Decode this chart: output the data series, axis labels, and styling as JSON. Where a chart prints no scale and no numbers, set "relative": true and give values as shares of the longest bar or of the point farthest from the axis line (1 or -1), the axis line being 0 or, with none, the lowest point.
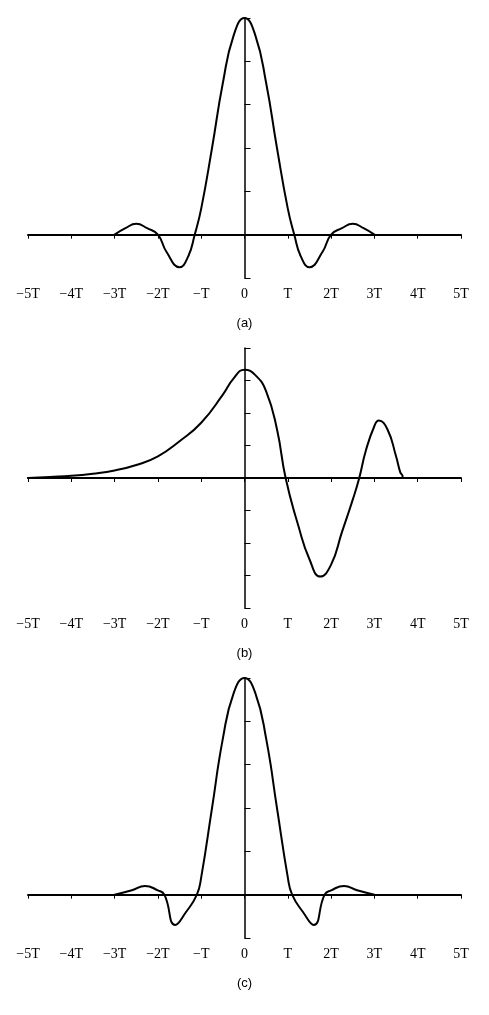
{
  "chart_data": [
    {
      "type": "line",
      "xlabel": "(a)",
      "relative": true,
      "marker": "none",
      "line_style": "solid",
      "xlim": [
        -5,
        5
      ],
      "xticks": [
        {
          "value": -5,
          "label": "−5T"
        },
        {
          "value": -4,
          "label": "−4T"
        },
        {
          "value": -3,
          "label": "−3T"
        },
        {
          "value": -2,
          "label": "−2T"
        },
        {
          "value": -1,
          "label": "−T"
        },
        {
          "value": 0,
          "label": "0"
        },
        {
          "value": 1,
          "label": "T"
        },
        {
          "value": 2,
          "label": "2T"
        },
        {
          "value": 3,
          "label": "3T"
        },
        {
          "value": 4,
          "label": "4T"
        },
        {
          "value": 5,
          "label": "5T"
        }
      ],
      "series": [
        {
          "color": "#000000",
          "x": [
            -3,
            -2.75,
            -2.5,
            -2.25,
            -2,
            -1.8,
            -1.5,
            -1.3,
            -1.15,
            -1,
            -0.75,
            -0.5,
            -0.25,
            0,
            0.25,
            0.5,
            0.75,
            1,
            1.15,
            1.3,
            1.5,
            1.8,
            2,
            2.25,
            2.5,
            2.75,
            3
          ],
          "values": [
            0,
            0.03,
            0.05,
            0.03,
            0,
            -0.08,
            -0.15,
            -0.1,
            0,
            0.12,
            0.4,
            0.7,
            0.92,
            1,
            0.92,
            0.7,
            0.4,
            0.12,
            0,
            -0.1,
            -0.15,
            -0.08,
            0,
            0.03,
            0.05,
            0.03,
            0
          ]
        }
      ]
    },
    {
      "type": "line",
      "xlabel": "(b)",
      "relative": true,
      "marker": "none",
      "line_style": "solid",
      "xlim": [
        -5,
        5
      ],
      "xticks": [
        {
          "value": -5,
          "label": "−5T"
        },
        {
          "value": -4,
          "label": "−4T"
        },
        {
          "value": -3,
          "label": "−3T"
        },
        {
          "value": -2,
          "label": "−2T"
        },
        {
          "value": -1,
          "label": "−T"
        },
        {
          "value": 0,
          "label": "0"
        },
        {
          "value": 1,
          "label": "T"
        },
        {
          "value": 2,
          "label": "2T"
        },
        {
          "value": 3,
          "label": "3T"
        },
        {
          "value": 4,
          "label": "4T"
        },
        {
          "value": 5,
          "label": "5T"
        }
      ],
      "series": [
        {
          "color": "#000000",
          "x": [
            -5,
            -4.5,
            -4,
            -3.5,
            -3,
            -2.5,
            -2,
            -1.5,
            -1,
            -0.5,
            -0.25,
            0,
            0.25,
            0.5,
            0.75,
            0.95,
            1.25,
            1.5,
            1.75,
            2,
            2.25,
            2.5,
            2.65,
            2.8,
            3,
            3.1,
            3.3,
            3.5,
            3.6,
            3.65,
            3.65
          ],
          "values": [
            0,
            0.01,
            0.02,
            0.04,
            0.07,
            0.12,
            0.2,
            0.34,
            0.51,
            0.77,
            0.92,
            1,
            0.95,
            0.8,
            0.45,
            0,
            -0.45,
            -0.75,
            -0.91,
            -0.8,
            -0.5,
            -0.2,
            0,
            0.25,
            0.48,
            0.53,
            0.45,
            0.2,
            0.05,
            0.02,
            0
          ]
        }
      ]
    },
    {
      "type": "line",
      "xlabel": "(c)",
      "relative": true,
      "marker": "none",
      "line_style": "solid",
      "xlim": [
        -5,
        5
      ],
      "xticks": [
        {
          "value": -5,
          "label": "−5T"
        },
        {
          "value": -4,
          "label": "−4T"
        },
        {
          "value": -3,
          "label": "−3T"
        },
        {
          "value": -2,
          "label": "−2T"
        },
        {
          "value": -1,
          "label": "−T"
        },
        {
          "value": 0,
          "label": "0"
        },
        {
          "value": 1,
          "label": "T"
        },
        {
          "value": 2,
          "label": "2T"
        },
        {
          "value": 3,
          "label": "3T"
        },
        {
          "value": 4,
          "label": "4T"
        },
        {
          "value": 5,
          "label": "5T"
        }
      ],
      "series": [
        {
          "color": "#000000",
          "x": [
            -3,
            -2.6,
            -2.3,
            -2,
            -1.85,
            -1.6,
            -1.35,
            -1.1,
            -1,
            -0.75,
            -0.5,
            -0.25,
            0,
            0.25,
            0.5,
            0.75,
            1,
            1.1,
            1.35,
            1.6,
            1.85,
            2,
            2.3,
            2.6,
            3
          ],
          "values": [
            0,
            0.02,
            0.04,
            0.02,
            0,
            -0.14,
            -0.08,
            0,
            0.08,
            0.4,
            0.72,
            0.93,
            1,
            0.93,
            0.72,
            0.4,
            0.08,
            0,
            -0.08,
            -0.14,
            0,
            0.02,
            0.04,
            0.02,
            0
          ]
        }
      ]
    }
  ]
}
